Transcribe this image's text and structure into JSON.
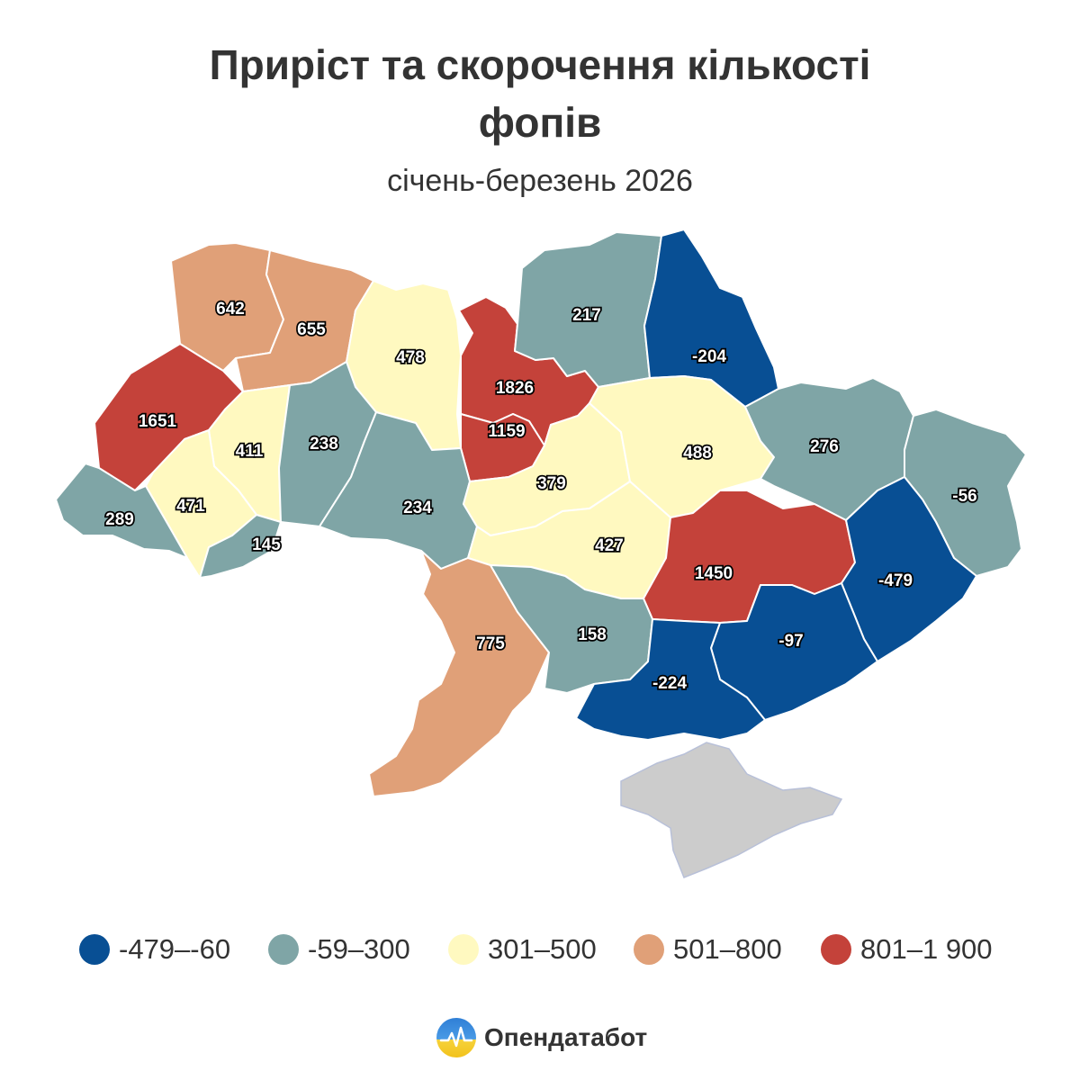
{
  "title_line1": "Приріст та скорочення кількості",
  "title_line2": "фопів",
  "subtitle": "січень-березень 2026",
  "colors": {
    "b1": "#084f94",
    "b2": "#7fa5a6",
    "b3": "#fff9c0",
    "b4": "#e0a078",
    "b5": "#c4423a",
    "crimea": "#cccccc"
  },
  "legend": [
    {
      "label": "-479–-60",
      "color": "#084f94"
    },
    {
      "label": "-59–300",
      "color": "#7fa5a6"
    },
    {
      "label": "301–500",
      "color": "#fff9c0"
    },
    {
      "label": "501–800",
      "color": "#e0a078"
    },
    {
      "label": "801–1 900",
      "color": "#c4423a"
    }
  ],
  "regions": [
    {
      "value": "642",
      "band": "b4"
    },
    {
      "value": "655",
      "band": "b4"
    },
    {
      "value": "478",
      "band": "b3"
    },
    {
      "value": "1826",
      "band": "b5"
    },
    {
      "value": "1159",
      "band": "b5"
    },
    {
      "value": "217",
      "band": "b2"
    },
    {
      "value": "-204",
      "band": "b1"
    },
    {
      "value": "1651",
      "band": "b5"
    },
    {
      "value": "411",
      "band": "b3"
    },
    {
      "value": "238",
      "band": "b2"
    },
    {
      "value": "471",
      "band": "b3"
    },
    {
      "value": "289",
      "band": "b2"
    },
    {
      "value": "145",
      "band": "b2"
    },
    {
      "value": "234",
      "band": "b2"
    },
    {
      "value": "379",
      "band": "b3"
    },
    {
      "value": "488",
      "band": "b3"
    },
    {
      "value": "276",
      "band": "b2"
    },
    {
      "value": "-56",
      "band": "b2"
    },
    {
      "value": "427",
      "band": "b3"
    },
    {
      "value": "1450",
      "band": "b5"
    },
    {
      "value": "-479",
      "band": "b1"
    },
    {
      "value": "-97",
      "band": "b1"
    },
    {
      "value": "775",
      "band": "b4"
    },
    {
      "value": "158",
      "band": "b2"
    },
    {
      "value": "-224",
      "band": "b1"
    }
  ],
  "brand": {
    "name": "Опендатабот"
  }
}
